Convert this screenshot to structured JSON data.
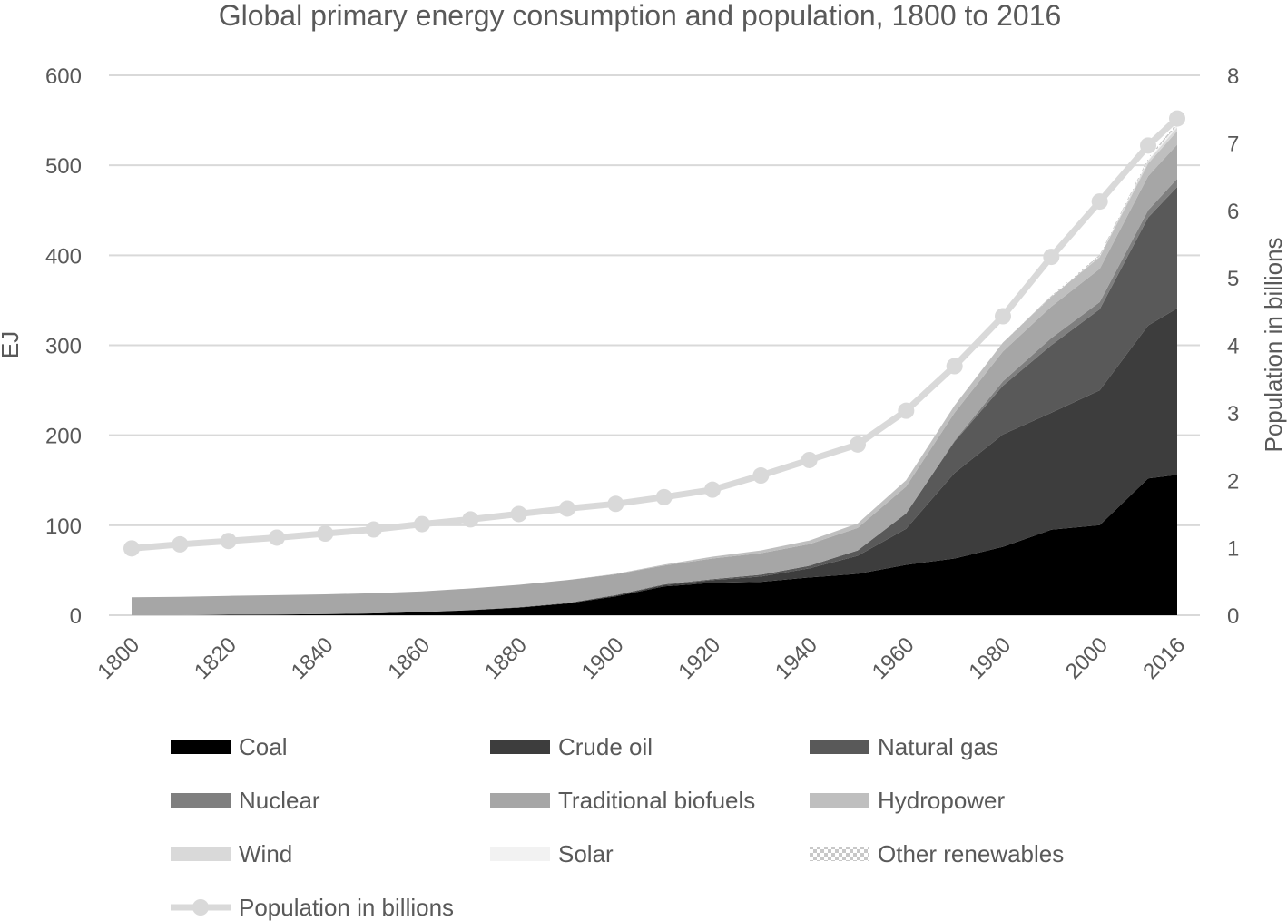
{
  "chart_data": {
    "type": "area",
    "title": "Global primary energy consumption and population, 1800 to 2016",
    "ylabel": "EJ",
    "y2label": "Population in billions",
    "xlabel": "",
    "ylim": [
      0,
      600
    ],
    "y2lim": [
      0,
      8
    ],
    "yticks": [
      "0",
      "100",
      "200",
      "300",
      "400",
      "500",
      "600"
    ],
    "y2ticks": [
      "0",
      "1",
      "2",
      "3",
      "4",
      "5",
      "6",
      "7",
      "8"
    ],
    "xtick_labels": [
      "1800",
      "1820",
      "1840",
      "1860",
      "1880",
      "1900",
      "1920",
      "1940",
      "1960",
      "1980",
      "2000",
      "2016"
    ],
    "x": [
      1800,
      1810,
      1820,
      1830,
      1840,
      1850,
      1860,
      1870,
      1880,
      1890,
      1900,
      1910,
      1920,
      1930,
      1940,
      1950,
      1960,
      1970,
      1980,
      1990,
      2000,
      2010,
      2016
    ],
    "series": [
      {
        "name": "Coal",
        "color": "#000000",
        "values": [
          0,
          0,
          0.5,
          0.8,
          1.2,
          2,
          3.5,
          5.5,
          8.5,
          13,
          21,
          32,
          36,
          37,
          42,
          46,
          56,
          63,
          76,
          95,
          100,
          152,
          156
        ]
      },
      {
        "name": "Crude oil",
        "color": "#3d3d3d",
        "values": [
          0,
          0,
          0,
          0,
          0,
          0,
          0,
          0.2,
          0.3,
          0.5,
          1,
          1.5,
          3,
          6,
          10,
          20,
          40,
          95,
          125,
          130,
          150,
          170,
          185
        ]
      },
      {
        "name": "Natural gas",
        "color": "#595959",
        "values": [
          0,
          0,
          0,
          0,
          0,
          0,
          0,
          0,
          0,
          0,
          0.5,
          0.8,
          1,
          2,
          3,
          6,
          17,
          35,
          54,
          75,
          90,
          120,
          135
        ]
      },
      {
        "name": "Nuclear",
        "color": "#7f7f7f",
        "values": [
          0,
          0,
          0,
          0,
          0,
          0,
          0,
          0,
          0,
          0,
          0,
          0,
          0,
          0,
          0,
          0,
          0,
          1,
          5,
          8,
          8,
          8,
          9
        ]
      },
      {
        "name": "Traditional biofuels",
        "color": "#a6a6a6",
        "values": [
          20,
          20.5,
          21,
          21.5,
          22,
          22.5,
          23,
          24,
          25,
          25.5,
          23,
          21,
          23,
          24,
          24,
          25,
          30,
          31,
          33,
          35,
          37,
          38,
          38
        ]
      },
      {
        "name": "Hydropower",
        "color": "#bfbfbf",
        "values": [
          0,
          0,
          0,
          0,
          0,
          0,
          0,
          0,
          0,
          0,
          0.5,
          1,
          2,
          3,
          4,
          5,
          7,
          8,
          10,
          11,
          13,
          14,
          15
        ]
      },
      {
        "name": "Wind",
        "color": "#d9d9d9",
        "values": [
          0,
          0,
          0,
          0,
          0,
          0,
          0,
          0,
          0,
          0,
          0,
          0,
          0,
          0,
          0,
          0,
          0,
          0,
          0,
          0,
          1,
          3,
          4
        ]
      },
      {
        "name": "Solar",
        "color": "#f2f2f2",
        "values": [
          0,
          0,
          0,
          0,
          0,
          0,
          0,
          0,
          0,
          0,
          0,
          0,
          0,
          0,
          0,
          0,
          0,
          0,
          0,
          0,
          0,
          1,
          3
        ]
      },
      {
        "name": "Other renewables",
        "color": "#e6e6e6",
        "pattern": "checker",
        "values": [
          0,
          0,
          0,
          0,
          0,
          0,
          0,
          0,
          0,
          0,
          0,
          0,
          0,
          0,
          0,
          0,
          0,
          0,
          0,
          1,
          1.5,
          2,
          2.5
        ]
      }
    ],
    "population": {
      "name": "Population in billions",
      "color": "#d9d9d9",
      "values": [
        0.99,
        1.05,
        1.1,
        1.15,
        1.21,
        1.27,
        1.35,
        1.42,
        1.5,
        1.58,
        1.65,
        1.75,
        1.86,
        2.07,
        2.3,
        2.53,
        3.03,
        3.69,
        4.43,
        5.31,
        6.13,
        6.96,
        7.36
      ]
    }
  }
}
